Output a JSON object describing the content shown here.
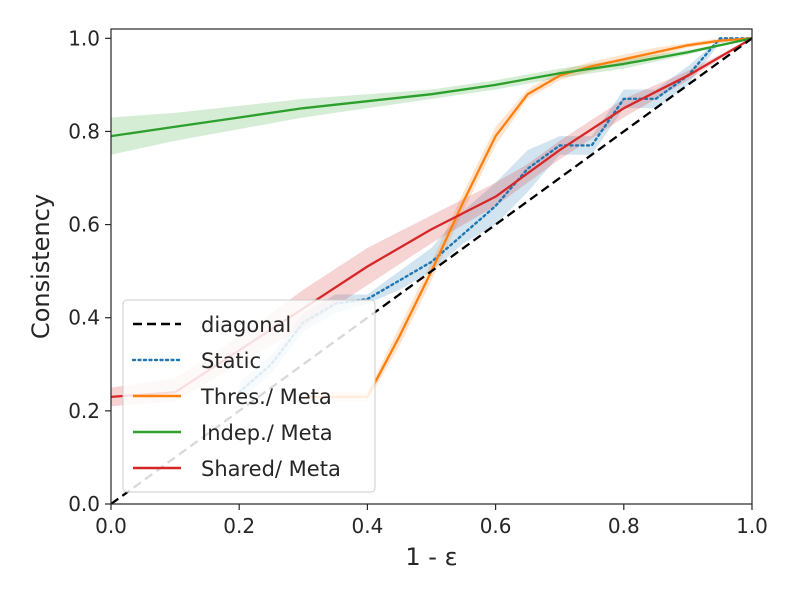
{
  "chart_data": {
    "type": "line",
    "title": "",
    "xlabel": "1 - ε",
    "ylabel": "Consistency",
    "xlim": [
      0,
      1
    ],
    "ylim": [
      0,
      1.02
    ],
    "grid": false,
    "legend_position": "bottom-left",
    "xticks": [
      "0.0",
      "0.2",
      "0.4",
      "0.6",
      "0.8",
      "1.0"
    ],
    "yticks": [
      "0.0",
      "0.2",
      "0.4",
      "0.6",
      "0.8",
      "1.0"
    ],
    "series": [
      {
        "name": "diagonal",
        "color": "#000000",
        "style": "dashed",
        "x": [
          0,
          1
        ],
        "y": [
          0,
          1
        ],
        "band": null
      },
      {
        "name": "Static",
        "color": "#1f77b4",
        "style": "dotted",
        "x": [
          0.2,
          0.25,
          0.3,
          0.35,
          0.4,
          0.45,
          0.5,
          0.55,
          0.6,
          0.65,
          0.7,
          0.75,
          0.8,
          0.85,
          0.9,
          0.95,
          1.0
        ],
        "y": [
          0.24,
          0.3,
          0.39,
          0.43,
          0.44,
          0.48,
          0.52,
          0.58,
          0.64,
          0.72,
          0.77,
          0.77,
          0.87,
          0.87,
          0.92,
          1.0,
          1.0
        ],
        "band": {
          "lower": [
            0.22,
            0.28,
            0.37,
            0.41,
            0.43,
            0.46,
            0.5,
            0.56,
            0.6,
            0.67,
            0.75,
            0.75,
            0.85,
            0.85,
            0.9,
            0.99,
            1.0
          ],
          "upper": [
            0.26,
            0.32,
            0.41,
            0.45,
            0.45,
            0.5,
            0.55,
            0.63,
            0.69,
            0.76,
            0.79,
            0.79,
            0.89,
            0.89,
            0.94,
            1.0,
            1.0
          ]
        }
      },
      {
        "name": "Thres./ Meta",
        "color": "#ff7f0e",
        "style": "solid",
        "x": [
          0.3,
          0.35,
          0.4,
          0.45,
          0.5,
          0.55,
          0.6,
          0.65,
          0.7,
          0.75,
          0.8,
          0.85,
          0.9,
          0.95,
          1.0
        ],
        "y": [
          0.23,
          0.23,
          0.23,
          0.36,
          0.5,
          0.65,
          0.79,
          0.88,
          0.92,
          0.94,
          0.955,
          0.97,
          0.985,
          0.995,
          1.0
        ],
        "band": {
          "lower": [
            0.22,
            0.22,
            0.22,
            0.34,
            0.48,
            0.63,
            0.77,
            0.87,
            0.91,
            0.93,
            0.945,
            0.96,
            0.98,
            0.99,
            1.0
          ],
          "upper": [
            0.24,
            0.24,
            0.24,
            0.38,
            0.52,
            0.67,
            0.81,
            0.89,
            0.93,
            0.95,
            0.965,
            0.98,
            0.99,
            1.0,
            1.0
          ]
        }
      },
      {
        "name": "Indep./ Meta",
        "color": "#2ca02c",
        "style": "solid",
        "x": [
          0.0,
          0.1,
          0.2,
          0.3,
          0.4,
          0.5,
          0.6,
          0.7,
          0.8,
          0.9,
          1.0
        ],
        "y": [
          0.79,
          0.81,
          0.83,
          0.85,
          0.865,
          0.88,
          0.9,
          0.925,
          0.945,
          0.97,
          1.0
        ],
        "band": {
          "lower": [
            0.75,
            0.78,
            0.805,
            0.83,
            0.85,
            0.87,
            0.89,
            0.915,
            0.935,
            0.965,
            1.0
          ],
          "upper": [
            0.83,
            0.84,
            0.855,
            0.87,
            0.88,
            0.89,
            0.91,
            0.935,
            0.955,
            0.975,
            1.0
          ]
        }
      },
      {
        "name": "Shared/ Meta",
        "color": "#d62728",
        "style": "solid",
        "x": [
          0.0,
          0.1,
          0.2,
          0.3,
          0.4,
          0.5,
          0.6,
          0.65,
          0.7,
          0.8,
          0.9,
          1.0
        ],
        "y": [
          0.23,
          0.24,
          0.33,
          0.42,
          0.51,
          0.59,
          0.66,
          0.71,
          0.76,
          0.85,
          0.92,
          1.0
        ],
        "band": {
          "lower": [
            0.21,
            0.22,
            0.3,
            0.38,
            0.47,
            0.56,
            0.64,
            0.69,
            0.74,
            0.83,
            0.91,
            1.0
          ],
          "upper": [
            0.25,
            0.27,
            0.36,
            0.46,
            0.55,
            0.62,
            0.69,
            0.73,
            0.78,
            0.87,
            0.93,
            1.0
          ]
        }
      }
    ]
  }
}
